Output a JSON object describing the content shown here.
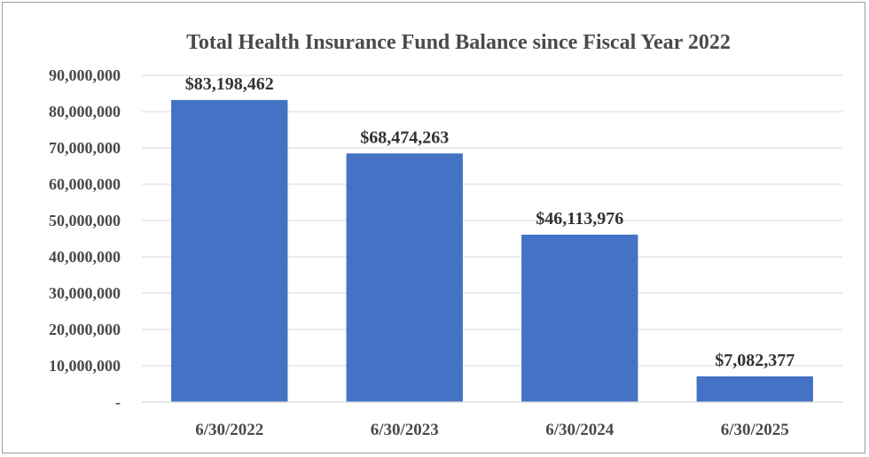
{
  "chart_data": {
    "type": "bar",
    "title": "Total Health Insurance Fund Balance since Fiscal Year 2022",
    "xlabel": "",
    "ylabel": "",
    "categories": [
      "6/30/2022",
      "6/30/2023",
      "6/30/2024",
      "6/30/2025"
    ],
    "values": [
      83198462,
      68474263,
      46113976,
      7082377
    ],
    "data_labels": [
      "$83,198,462",
      "$68,474,263",
      "$46,113,976",
      "$7,082,377"
    ],
    "ylim": [
      0,
      90000000
    ],
    "yticks": [
      0,
      10000000,
      20000000,
      30000000,
      40000000,
      50000000,
      60000000,
      70000000,
      80000000,
      90000000
    ],
    "ytick_labels": [
      "-",
      "10,000,000",
      "20,000,000",
      "30,000,000",
      "40,000,000",
      "50,000,000",
      "60,000,000",
      "70,000,000",
      "80,000,000",
      "90,000,000"
    ],
    "grid": true,
    "legend": "none",
    "colors": {
      "bar": "#4472c4",
      "grid": "#d9d9d9",
      "text": "#4a4a4a"
    }
  }
}
